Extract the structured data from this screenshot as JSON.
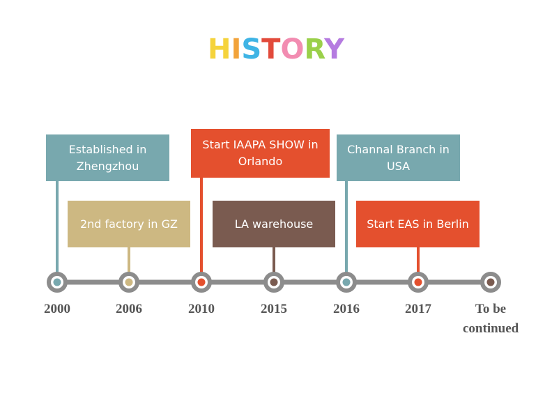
{
  "title": "HISTORY",
  "milestones": [
    {
      "year": "2000",
      "event": "Established in Zhengzhou"
    },
    {
      "year": "2006",
      "event": "2nd factory in GZ"
    },
    {
      "year": "2010",
      "event": "Start IAAPA SHOW in Orlando"
    },
    {
      "year": "2015",
      "event": "LA warehouse"
    },
    {
      "year": "2016",
      "event": "Channal Branch in USA"
    },
    {
      "year": "2017",
      "event": "Start EAS in Berlin"
    },
    {
      "year": "To be continued"
    }
  ]
}
